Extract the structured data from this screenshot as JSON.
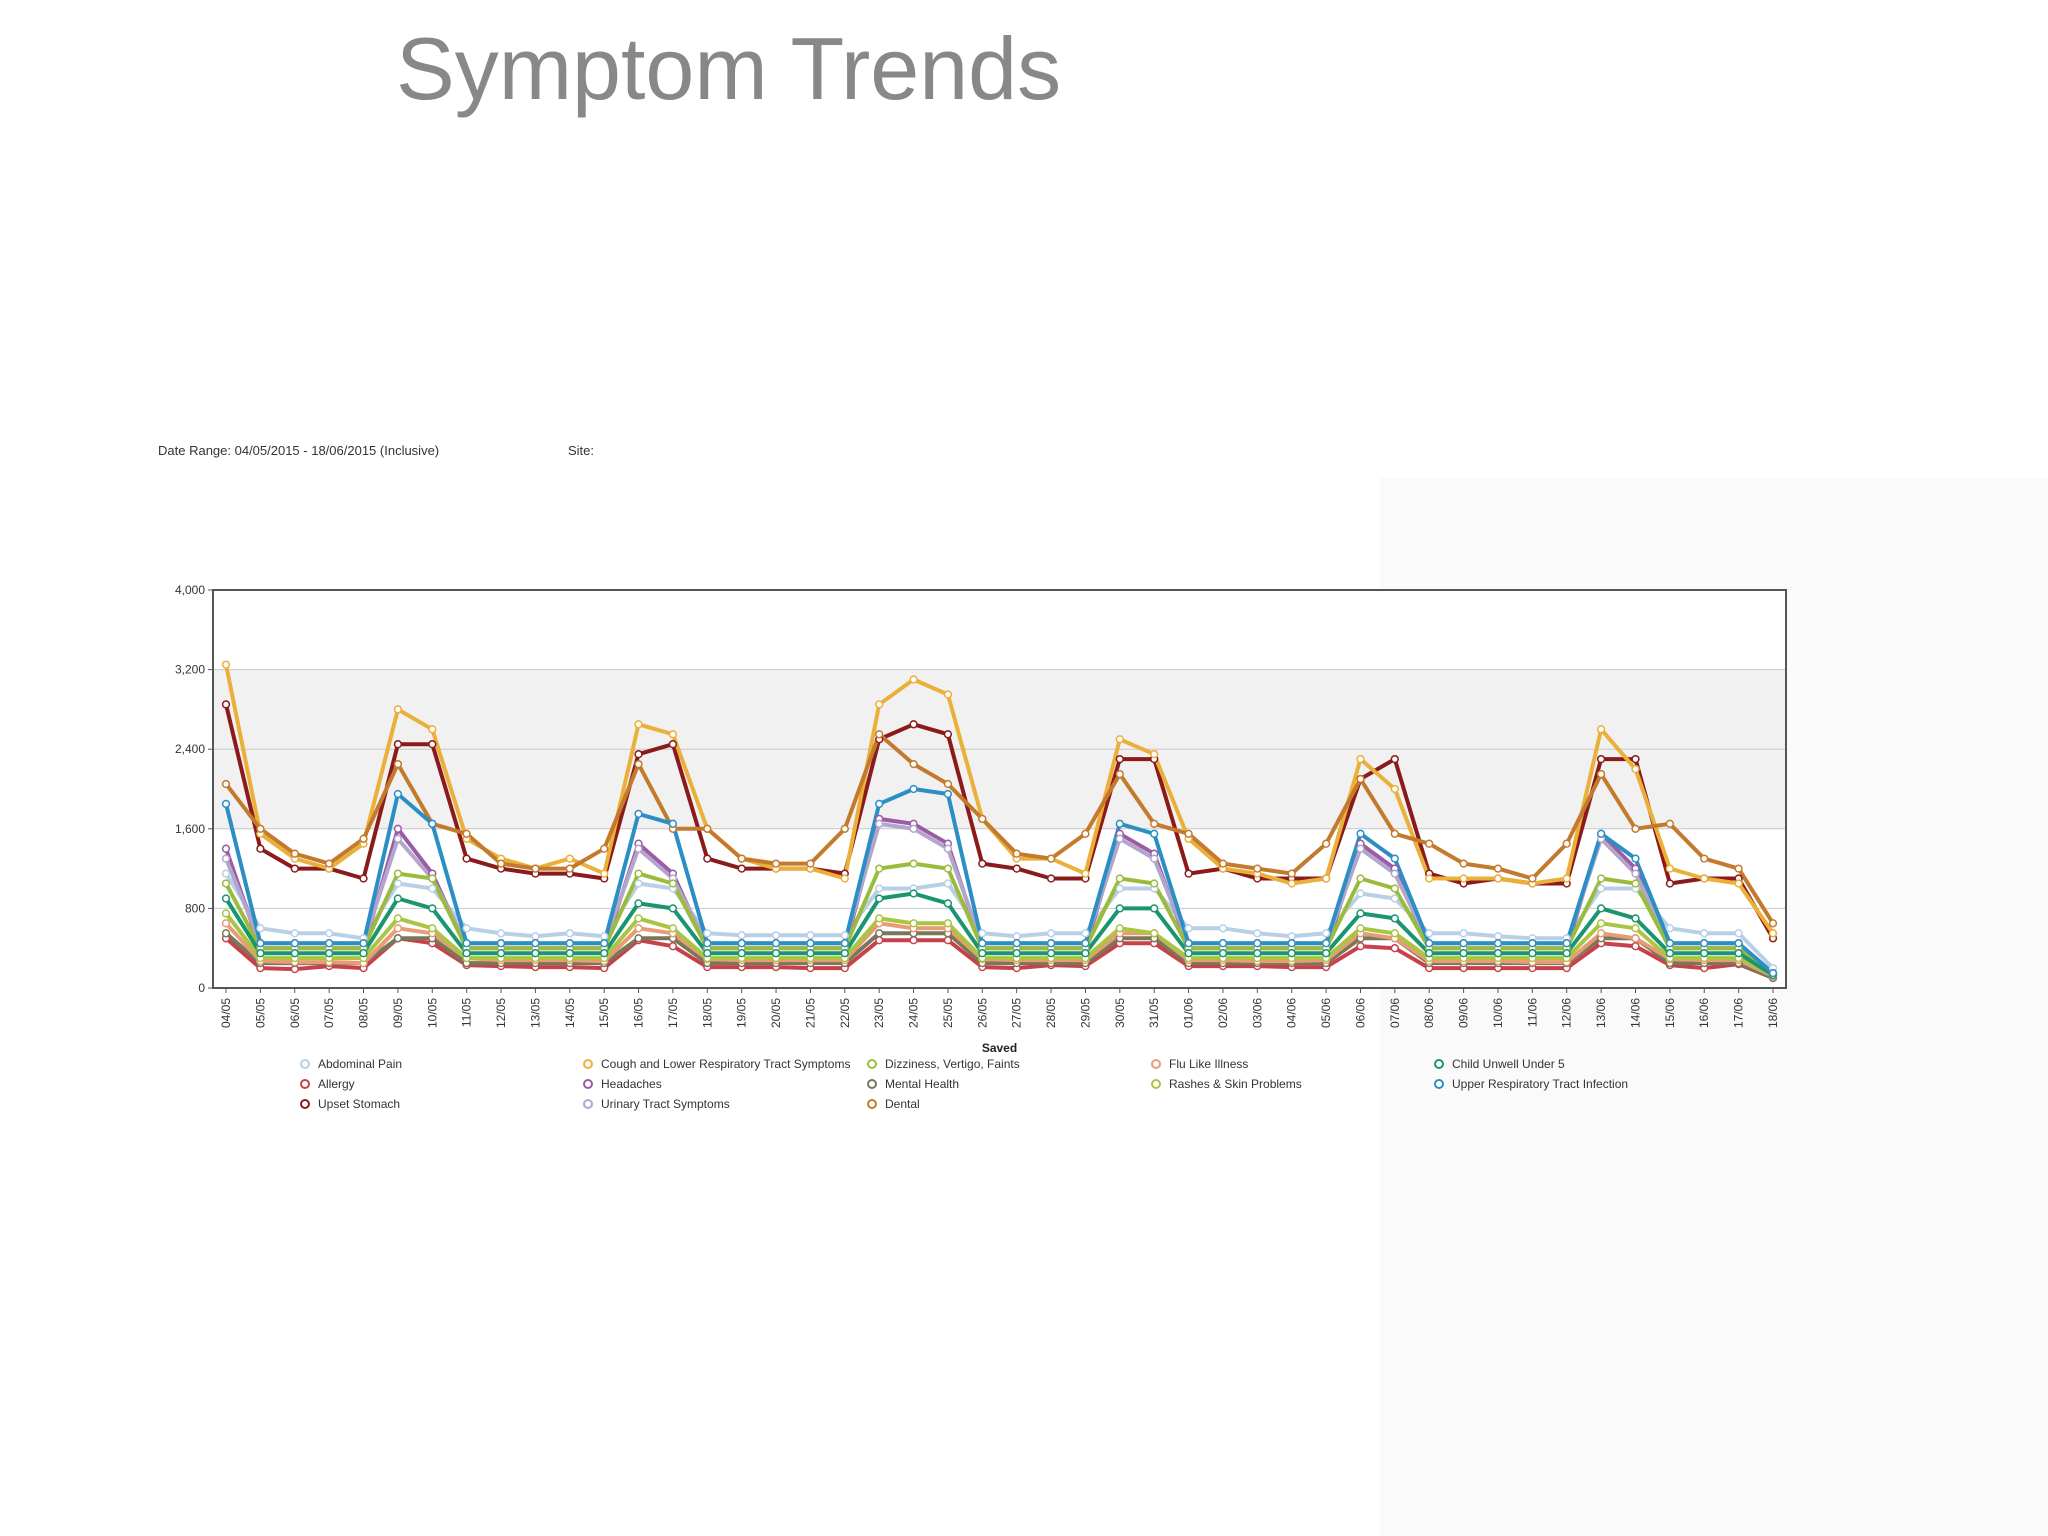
{
  "page": {
    "title": "Symptom Trends"
  },
  "report": {
    "date_range": "Date Range: 04/05/2015 - 18/06/2015 (Inclusive)",
    "site": "Site:"
  },
  "chart_data": {
    "type": "line",
    "xlabel": "Saved",
    "ylabel": "",
    "ylim": [
      0,
      4000
    ],
    "yticks": [
      0,
      800,
      1600,
      2400,
      3200,
      4000
    ],
    "ytick_labels": [
      "0",
      "800",
      "1,600",
      "2,400",
      "3,200",
      "4,000"
    ],
    "grid": true,
    "legend_position": "bottom",
    "categories": [
      "04/05",
      "05/05",
      "06/05",
      "07/05",
      "08/05",
      "09/05",
      "10/05",
      "11/05",
      "12/05",
      "13/05",
      "14/05",
      "15/05",
      "16/05",
      "17/05",
      "18/05",
      "19/05",
      "20/05",
      "21/05",
      "22/05",
      "23/05",
      "24/05",
      "25/05",
      "26/05",
      "27/05",
      "28/05",
      "29/05",
      "30/05",
      "31/05",
      "01/06",
      "02/06",
      "03/06",
      "04/06",
      "05/06",
      "06/06",
      "07/06",
      "08/06",
      "09/06",
      "10/06",
      "11/06",
      "12/06",
      "13/06",
      "14/06",
      "15/06",
      "16/06",
      "17/06",
      "18/06"
    ],
    "series": [
      {
        "name": "Abdominal Pain",
        "color": "#b8cfe6",
        "values": [
          1150,
          600,
          550,
          550,
          500,
          1050,
          1000,
          600,
          550,
          520,
          550,
          520,
          1050,
          1000,
          550,
          530,
          530,
          530,
          530,
          1000,
          1000,
          1050,
          550,
          520,
          550,
          550,
          1000,
          1000,
          600,
          600,
          550,
          520,
          550,
          950,
          900,
          550,
          550,
          520,
          500,
          500,
          1000,
          1000,
          600,
          550,
          550,
          200
        ]
      },
      {
        "name": "Allergy",
        "color": "#c8414a",
        "values": [
          500,
          200,
          190,
          220,
          200,
          500,
          450,
          230,
          220,
          210,
          210,
          200,
          480,
          420,
          210,
          210,
          210,
          200,
          200,
          480,
          480,
          480,
          210,
          200,
          230,
          220,
          450,
          450,
          220,
          220,
          220,
          210,
          210,
          420,
          400,
          200,
          200,
          200,
          200,
          200,
          450,
          420,
          230,
          200,
          240,
          100
        ]
      },
      {
        "name": "Upset Stomach",
        "color": "#8b1a1a",
        "values": [
          2850,
          1400,
          1200,
          1200,
          1100,
          2450,
          2450,
          1300,
          1200,
          1150,
          1150,
          1100,
          2350,
          2450,
          1300,
          1200,
          1200,
          1200,
          1150,
          2500,
          2650,
          2550,
          1250,
          1200,
          1100,
          1100,
          2300,
          2300,
          1150,
          1200,
          1100,
          1100,
          1100,
          2100,
          2300,
          1150,
          1050,
          1100,
          1050,
          1050,
          2300,
          2300,
          1050,
          1100,
          1100,
          500
        ]
      },
      {
        "name": "Cough and Lower Respiratory Tract Symptoms",
        "color": "#eab03a",
        "values": [
          3250,
          1550,
          1300,
          1200,
          1450,
          2800,
          2600,
          1500,
          1300,
          1200,
          1300,
          1150,
          2650,
          2550,
          1600,
          1300,
          1200,
          1200,
          1100,
          2850,
          3100,
          2950,
          1700,
          1300,
          1300,
          1150,
          2500,
          2350,
          1500,
          1200,
          1150,
          1050,
          1100,
          2300,
          2000,
          1100,
          1100,
          1100,
          1050,
          1100,
          2600,
          2200,
          1200,
          1100,
          1050,
          550
        ]
      },
      {
        "name": "Headaches",
        "color": "#9b5ba5",
        "values": [
          1400,
          400,
          400,
          400,
          400,
          1600,
          1150,
          400,
          400,
          400,
          400,
          400,
          1450,
          1150,
          400,
          400,
          400,
          400,
          400,
          1700,
          1650,
          1450,
          400,
          400,
          400,
          400,
          1550,
          1350,
          400,
          400,
          400,
          400,
          400,
          1450,
          1200,
          400,
          400,
          400,
          400,
          400,
          1550,
          1200,
          400,
          400,
          400,
          150
        ]
      },
      {
        "name": "Urinary Tract Symptoms",
        "color": "#b3a6cc",
        "values": [
          1300,
          450,
          450,
          450,
          450,
          1500,
          1100,
          450,
          450,
          450,
          450,
          450,
          1400,
          1100,
          450,
          450,
          450,
          450,
          450,
          1650,
          1600,
          1400,
          450,
          450,
          450,
          450,
          1500,
          1300,
          450,
          450,
          450,
          450,
          450,
          1400,
          1150,
          450,
          450,
          450,
          450,
          450,
          1500,
          1150,
          450,
          450,
          450,
          150
        ]
      },
      {
        "name": "Dizziness, Vertigo, Faints",
        "color": "#9bbb3c",
        "values": [
          1050,
          400,
          400,
          400,
          400,
          1150,
          1100,
          400,
          400,
          400,
          400,
          400,
          1150,
          1050,
          400,
          400,
          400,
          400,
          400,
          1200,
          1250,
          1200,
          400,
          400,
          400,
          400,
          1100,
          1050,
          400,
          400,
          400,
          400,
          400,
          1100,
          1000,
          400,
          400,
          400,
          400,
          400,
          1100,
          1050,
          400,
          400,
          400,
          150
        ]
      },
      {
        "name": "Mental Health",
        "color": "#77785a",
        "values": [
          550,
          250,
          250,
          250,
          250,
          500,
          500,
          250,
          250,
          250,
          250,
          250,
          500,
          500,
          250,
          250,
          250,
          250,
          250,
          550,
          550,
          550,
          250,
          250,
          250,
          250,
          500,
          500,
          250,
          250,
          250,
          250,
          250,
          500,
          500,
          250,
          250,
          250,
          250,
          250,
          500,
          500,
          250,
          250,
          250,
          100
        ]
      },
      {
        "name": "Dental",
        "color": "#c47a2c",
        "values": [
          2050,
          1600,
          1350,
          1250,
          1500,
          2250,
          1650,
          1550,
          1250,
          1200,
          1200,
          1400,
          2250,
          1600,
          1600,
          1300,
          1250,
          1250,
          1600,
          2550,
          2250,
          2050,
          1700,
          1350,
          1300,
          1550,
          2150,
          1650,
          1550,
          1250,
          1200,
          1150,
          1450,
          2100,
          1550,
          1450,
          1250,
          1200,
          1100,
          1450,
          2150,
          1600,
          1650,
          1300,
          1200,
          650
        ]
      },
      {
        "name": "Flu Like Illness",
        "color": "#e89c75",
        "values": [
          650,
          270,
          260,
          260,
          250,
          600,
          550,
          300,
          280,
          280,
          280,
          270,
          600,
          550,
          290,
          280,
          280,
          280,
          280,
          650,
          600,
          600,
          290,
          280,
          280,
          280,
          550,
          550,
          280,
          280,
          270,
          270,
          280,
          550,
          500,
          270,
          270,
          270,
          260,
          260,
          550,
          500,
          290,
          280,
          280,
          120
        ]
      },
      {
        "name": "Rashes & Skin Problems",
        "color": "#aac542",
        "values": [
          750,
          300,
          300,
          300,
          300,
          700,
          600,
          300,
          300,
          300,
          300,
          300,
          700,
          600,
          300,
          300,
          300,
          300,
          300,
          700,
          650,
          650,
          300,
          300,
          300,
          300,
          600,
          550,
          300,
          300,
          300,
          300,
          300,
          600,
          550,
          300,
          300,
          300,
          300,
          300,
          650,
          600,
          300,
          300,
          300,
          130
        ]
      },
      {
        "name": "Child Unwell Under 5",
        "color": "#1a9570",
        "values": [
          900,
          350,
          350,
          350,
          350,
          900,
          800,
          350,
          350,
          350,
          350,
          350,
          850,
          800,
          350,
          350,
          350,
          350,
          350,
          900,
          950,
          850,
          350,
          350,
          350,
          350,
          800,
          800,
          350,
          350,
          350,
          350,
          350,
          750,
          700,
          350,
          350,
          350,
          350,
          350,
          800,
          700,
          350,
          350,
          350,
          130
        ]
      },
      {
        "name": "Upper Respiratory Tract Infection",
        "color": "#2b8fc4",
        "values": [
          1850,
          450,
          450,
          450,
          450,
          1950,
          1650,
          450,
          450,
          450,
          450,
          450,
          1750,
          1650,
          450,
          450,
          450,
          450,
          450,
          1850,
          2000,
          1950,
          450,
          450,
          450,
          450,
          1650,
          1550,
          450,
          450,
          450,
          450,
          450,
          1550,
          1300,
          450,
          450,
          450,
          450,
          450,
          1550,
          1300,
          450,
          450,
          450,
          150
        ]
      }
    ],
    "legend_rows": [
      [
        "Abdominal Pain",
        "Cough and Lower Respiratory Tract Symptoms",
        "Dizziness, Vertigo, Faints",
        "Flu Like Illness",
        "Child Unwell Under 5"
      ],
      [
        "Allergy",
        "Headaches",
        "Mental Health",
        "Rashes & Skin Problems",
        "Upper Respiratory Tract Infection"
      ],
      [
        "Upset Stomach",
        "Urinary Tract Symptoms",
        "Dental"
      ]
    ]
  }
}
